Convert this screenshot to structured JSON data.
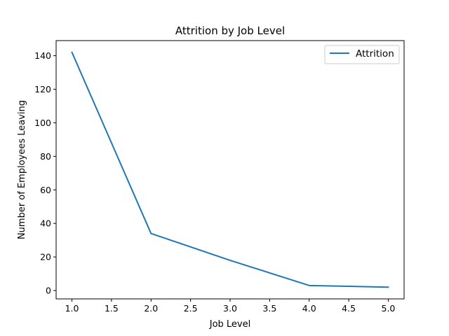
{
  "chart_data": {
    "type": "line",
    "title": "Attrition by Job Level",
    "xlabel": "Job Level",
    "ylabel": "Number of Employees Leaving",
    "xlim": [
      0.8,
      5.2
    ],
    "ylim": [
      -5,
      149
    ],
    "xticks": [
      1.0,
      1.5,
      2.0,
      2.5,
      3.0,
      3.5,
      4.0,
      4.5,
      5.0
    ],
    "xtick_labels": [
      "1.0",
      "1.5",
      "2.0",
      "2.5",
      "3.0",
      "3.5",
      "4.0",
      "4.5",
      "5.0"
    ],
    "yticks": [
      0,
      20,
      40,
      60,
      80,
      100,
      120,
      140
    ],
    "ytick_labels": [
      "0",
      "20",
      "40",
      "60",
      "80",
      "100",
      "120",
      "140"
    ],
    "grid": false,
    "legend_position": "top-right",
    "series": [
      {
        "name": "Attrition",
        "color": "#1f77b4",
        "x": [
          1,
          2,
          3,
          4,
          5
        ],
        "y": [
          142,
          34,
          18,
          3,
          2
        ]
      }
    ]
  }
}
